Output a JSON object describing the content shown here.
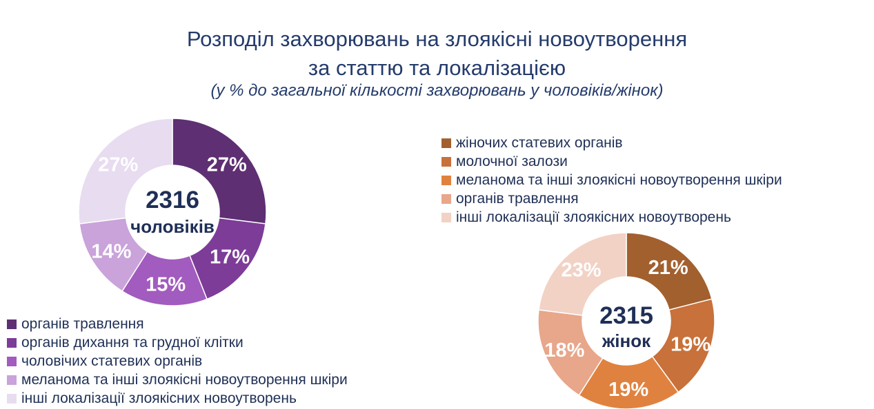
{
  "title": {
    "line1": "Розподіл захворювань на злоякісні новоутворення",
    "line2": "за статтю та локалізацією"
  },
  "subtitle": "(у % до загальної кількості захворювань у чоловіків/жінок)",
  "chart_data": [
    {
      "type": "pie",
      "donut": true,
      "center_value": "2316",
      "center_label": "чоловіків",
      "legend_position": "bottom-left",
      "categories": [
        "органів травлення",
        "органів дихання та грудної клітки",
        "чоловічих статевих органів",
        "меланома та інші злоякісні новоутворення шкіри",
        "інші локалізації злоякісних новоутворень"
      ],
      "values": [
        27,
        17,
        15,
        14,
        27
      ],
      "labels": [
        "27%",
        "17%",
        "15%",
        "14%",
        "27%"
      ],
      "colors": [
        "#5E2F73",
        "#7D3C98",
        "#A25BBE",
        "#C9A3DA",
        "#E8DCF0"
      ]
    },
    {
      "type": "pie",
      "donut": true,
      "center_value": "2315",
      "center_label": "жінок",
      "legend_position": "top",
      "categories": [
        "жіночих статевих органів",
        "молочної залози",
        "меланома та інші злоякісні новоутворення шкіри",
        "органів травлення",
        "інші локалізації злоякісних новоутворень"
      ],
      "values": [
        21,
        19,
        19,
        18,
        23
      ],
      "labels": [
        "21%",
        "19%",
        "19%",
        "18%",
        "23%"
      ],
      "colors": [
        "#A2602F",
        "#C8713A",
        "#E0823F",
        "#E8A68A",
        "#F2D2C5"
      ]
    }
  ]
}
